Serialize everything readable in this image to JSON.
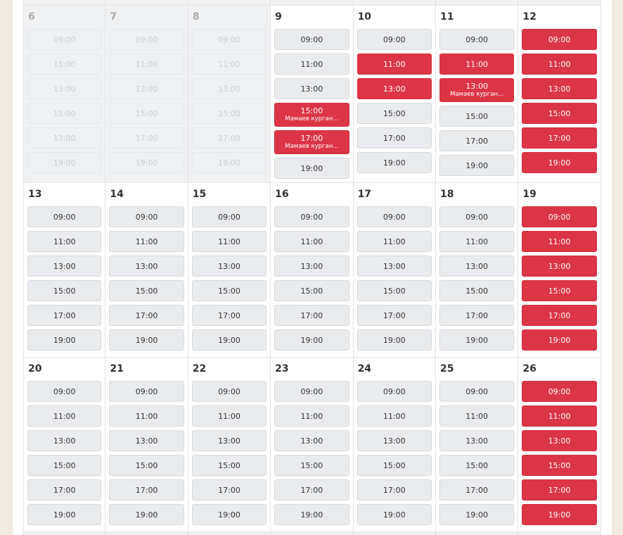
{
  "weeks": [
    {
      "days": [
        {
          "day": "6",
          "state": "past",
          "slots": [
            {
              "time": "09:00",
              "state": "past"
            },
            {
              "time": "11:00",
              "state": "past"
            },
            {
              "time": "13:00",
              "state": "past"
            },
            {
              "time": "15:00",
              "state": "past"
            },
            {
              "time": "17:00",
              "state": "past"
            },
            {
              "time": "19:00",
              "state": "past"
            }
          ]
        },
        {
          "day": "7",
          "state": "past",
          "slots": [
            {
              "time": "09:00",
              "state": "past"
            },
            {
              "time": "11:00",
              "state": "past"
            },
            {
              "time": "13:00",
              "state": "past"
            },
            {
              "time": "15:00",
              "state": "past"
            },
            {
              "time": "17:00",
              "state": "past"
            },
            {
              "time": "19:00",
              "state": "past"
            }
          ]
        },
        {
          "day": "8",
          "state": "past",
          "slots": [
            {
              "time": "09:00",
              "state": "past"
            },
            {
              "time": "11:00",
              "state": "past"
            },
            {
              "time": "13:00",
              "state": "past"
            },
            {
              "time": "15:00",
              "state": "past"
            },
            {
              "time": "17:00",
              "state": "past"
            },
            {
              "time": "19:00",
              "state": "past"
            }
          ]
        },
        {
          "day": "9",
          "state": "open",
          "slots": [
            {
              "time": "09:00",
              "state": "free"
            },
            {
              "time": "11:00",
              "state": "free"
            },
            {
              "time": "13:00",
              "state": "free"
            },
            {
              "time": "15:00",
              "state": "booked",
              "note": "Мамаев курган..."
            },
            {
              "time": "17:00",
              "state": "booked",
              "note": "Мамаев курган..."
            },
            {
              "time": "19:00",
              "state": "free"
            }
          ]
        },
        {
          "day": "10",
          "state": "open",
          "slots": [
            {
              "time": "09:00",
              "state": "free"
            },
            {
              "time": "11:00",
              "state": "booked"
            },
            {
              "time": "13:00",
              "state": "booked"
            },
            {
              "time": "15:00",
              "state": "free"
            },
            {
              "time": "17:00",
              "state": "free"
            },
            {
              "time": "19:00",
              "state": "free"
            }
          ]
        },
        {
          "day": "11",
          "state": "open",
          "slots": [
            {
              "time": "09:00",
              "state": "free"
            },
            {
              "time": "11:00",
              "state": "booked"
            },
            {
              "time": "13:00",
              "state": "booked",
              "note": "Мамаев курган..."
            },
            {
              "time": "15:00",
              "state": "free"
            },
            {
              "time": "17:00",
              "state": "free"
            },
            {
              "time": "19:00",
              "state": "free"
            }
          ]
        },
        {
          "day": "12",
          "state": "open",
          "slots": [
            {
              "time": "09:00",
              "state": "booked"
            },
            {
              "time": "11:00",
              "state": "booked"
            },
            {
              "time": "13:00",
              "state": "booked"
            },
            {
              "time": "15:00",
              "state": "booked"
            },
            {
              "time": "17:00",
              "state": "booked"
            },
            {
              "time": "19:00",
              "state": "booked"
            }
          ]
        }
      ]
    },
    {
      "days": [
        {
          "day": "13",
          "state": "open",
          "slots": [
            {
              "time": "09:00",
              "state": "free"
            },
            {
              "time": "11:00",
              "state": "free"
            },
            {
              "time": "13:00",
              "state": "free"
            },
            {
              "time": "15:00",
              "state": "free"
            },
            {
              "time": "17:00",
              "state": "free"
            },
            {
              "time": "19:00",
              "state": "free"
            }
          ]
        },
        {
          "day": "14",
          "state": "open",
          "slots": [
            {
              "time": "09:00",
              "state": "free"
            },
            {
              "time": "11:00",
              "state": "free"
            },
            {
              "time": "13:00",
              "state": "free"
            },
            {
              "time": "15:00",
              "state": "free"
            },
            {
              "time": "17:00",
              "state": "free"
            },
            {
              "time": "19:00",
              "state": "free"
            }
          ]
        },
        {
          "day": "15",
          "state": "open",
          "slots": [
            {
              "time": "09:00",
              "state": "free"
            },
            {
              "time": "11:00",
              "state": "free"
            },
            {
              "time": "13:00",
              "state": "free"
            },
            {
              "time": "15:00",
              "state": "free"
            },
            {
              "time": "17:00",
              "state": "free"
            },
            {
              "time": "19:00",
              "state": "free"
            }
          ]
        },
        {
          "day": "16",
          "state": "open",
          "slots": [
            {
              "time": "09:00",
              "state": "free"
            },
            {
              "time": "11:00",
              "state": "free"
            },
            {
              "time": "13:00",
              "state": "free"
            },
            {
              "time": "15:00",
              "state": "free"
            },
            {
              "time": "17:00",
              "state": "free"
            },
            {
              "time": "19:00",
              "state": "free"
            }
          ]
        },
        {
          "day": "17",
          "state": "open",
          "slots": [
            {
              "time": "09:00",
              "state": "free"
            },
            {
              "time": "11:00",
              "state": "free"
            },
            {
              "time": "13:00",
              "state": "free"
            },
            {
              "time": "15:00",
              "state": "free"
            },
            {
              "time": "17:00",
              "state": "free"
            },
            {
              "time": "19:00",
              "state": "free"
            }
          ]
        },
        {
          "day": "18",
          "state": "open",
          "slots": [
            {
              "time": "09:00",
              "state": "free"
            },
            {
              "time": "11:00",
              "state": "free"
            },
            {
              "time": "13:00",
              "state": "free"
            },
            {
              "time": "15:00",
              "state": "free"
            },
            {
              "time": "17:00",
              "state": "free"
            },
            {
              "time": "19:00",
              "state": "free"
            }
          ]
        },
        {
          "day": "19",
          "state": "open",
          "slots": [
            {
              "time": "09:00",
              "state": "booked"
            },
            {
              "time": "11:00",
              "state": "booked"
            },
            {
              "time": "13:00",
              "state": "booked"
            },
            {
              "time": "15:00",
              "state": "booked"
            },
            {
              "time": "17:00",
              "state": "booked"
            },
            {
              "time": "19:00",
              "state": "booked"
            }
          ]
        }
      ]
    },
    {
      "days": [
        {
          "day": "20",
          "state": "open",
          "slots": [
            {
              "time": "09:00",
              "state": "free"
            },
            {
              "time": "11:00",
              "state": "free"
            },
            {
              "time": "13:00",
              "state": "free"
            },
            {
              "time": "15:00",
              "state": "free"
            },
            {
              "time": "17:00",
              "state": "free"
            },
            {
              "time": "19:00",
              "state": "free"
            }
          ]
        },
        {
          "day": "21",
          "state": "open",
          "slots": [
            {
              "time": "09:00",
              "state": "free"
            },
            {
              "time": "11:00",
              "state": "free"
            },
            {
              "time": "13:00",
              "state": "free"
            },
            {
              "time": "15:00",
              "state": "free"
            },
            {
              "time": "17:00",
              "state": "free"
            },
            {
              "time": "19:00",
              "state": "free"
            }
          ]
        },
        {
          "day": "22",
          "state": "open",
          "slots": [
            {
              "time": "09:00",
              "state": "free"
            },
            {
              "time": "11:00",
              "state": "free"
            },
            {
              "time": "13:00",
              "state": "free"
            },
            {
              "time": "15:00",
              "state": "free"
            },
            {
              "time": "17:00",
              "state": "free"
            },
            {
              "time": "19:00",
              "state": "free"
            }
          ]
        },
        {
          "day": "23",
          "state": "open",
          "slots": [
            {
              "time": "09:00",
              "state": "free"
            },
            {
              "time": "11:00",
              "state": "free"
            },
            {
              "time": "13:00",
              "state": "free"
            },
            {
              "time": "15:00",
              "state": "free"
            },
            {
              "time": "17:00",
              "state": "free"
            },
            {
              "time": "19:00",
              "state": "free"
            }
          ]
        },
        {
          "day": "24",
          "state": "open",
          "slots": [
            {
              "time": "09:00",
              "state": "free"
            },
            {
              "time": "11:00",
              "state": "free"
            },
            {
              "time": "13:00",
              "state": "free"
            },
            {
              "time": "15:00",
              "state": "free"
            },
            {
              "time": "17:00",
              "state": "free"
            },
            {
              "time": "19:00",
              "state": "free"
            }
          ]
        },
        {
          "day": "25",
          "state": "open",
          "slots": [
            {
              "time": "09:00",
              "state": "free"
            },
            {
              "time": "11:00",
              "state": "free"
            },
            {
              "time": "13:00",
              "state": "free"
            },
            {
              "time": "15:00",
              "state": "free"
            },
            {
              "time": "17:00",
              "state": "free"
            },
            {
              "time": "19:00",
              "state": "free"
            }
          ]
        },
        {
          "day": "26",
          "state": "open",
          "slots": [
            {
              "time": "09:00",
              "state": "booked"
            },
            {
              "time": "11:00",
              "state": "booked"
            },
            {
              "time": "13:00",
              "state": "booked"
            },
            {
              "time": "15:00",
              "state": "booked"
            },
            {
              "time": "17:00",
              "state": "booked"
            },
            {
              "time": "19:00",
              "state": "booked"
            }
          ]
        }
      ]
    }
  ]
}
